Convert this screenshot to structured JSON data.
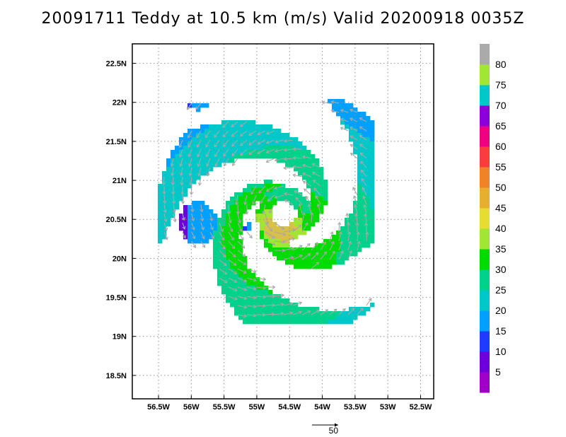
{
  "title": "20091711 Teddy at 10.5 km (m/s) Valid 20200918 0035Z",
  "chart_data": {
    "type": "heatmap",
    "field": "wind speed with wind vectors",
    "units": "m/s",
    "xlim": [
      -56.9,
      -52.3
    ],
    "ylim": [
      18.2,
      22.75
    ],
    "x_ticks": [
      {
        "value": -56.5,
        "label": "56.5W"
      },
      {
        "value": -56.0,
        "label": "56W"
      },
      {
        "value": -55.5,
        "label": "55.5W"
      },
      {
        "value": -55.0,
        "label": "55W"
      },
      {
        "value": -54.5,
        "label": "54.5W"
      },
      {
        "value": -54.0,
        "label": "54W"
      },
      {
        "value": -53.5,
        "label": "53.5W"
      },
      {
        "value": -53.0,
        "label": "53W"
      },
      {
        "value": -52.5,
        "label": "52.5W"
      }
    ],
    "y_ticks": [
      {
        "value": 18.5,
        "label": "18.5N"
      },
      {
        "value": 19.0,
        "label": "19N"
      },
      {
        "value": 19.5,
        "label": "19.5N"
      },
      {
        "value": 20.0,
        "label": "20N"
      },
      {
        "value": 20.5,
        "label": "20.5N"
      },
      {
        "value": 21.0,
        "label": "21N"
      },
      {
        "value": 21.5,
        "label": "21.5N"
      },
      {
        "value": 22.0,
        "label": "22N"
      },
      {
        "value": 22.5,
        "label": "22.5N"
      }
    ],
    "grid": true,
    "storm_center": {
      "lon": -54.58,
      "lat": 20.57
    },
    "colorbar": {
      "labels": [
        "5",
        "10",
        "15",
        "20",
        "25",
        "30",
        "35",
        "40",
        "45",
        "50",
        "55",
        "60",
        "65",
        "70",
        "75",
        "80"
      ],
      "colors": [
        "#a000c8",
        "#6e00dc",
        "#1e3cff",
        "#00a0ff",
        "#00c8c8",
        "#00d28c",
        "#00dc00",
        "#a0e632",
        "#e6dc32",
        "#e6af2d",
        "#f08228",
        "#fa3c3c",
        "#f00082",
        "#8c00dc",
        "#00c8c8",
        "#a0e632",
        "#aaaaaa"
      ]
    },
    "reference_vector": {
      "label": "50",
      "speed": 50
    }
  }
}
